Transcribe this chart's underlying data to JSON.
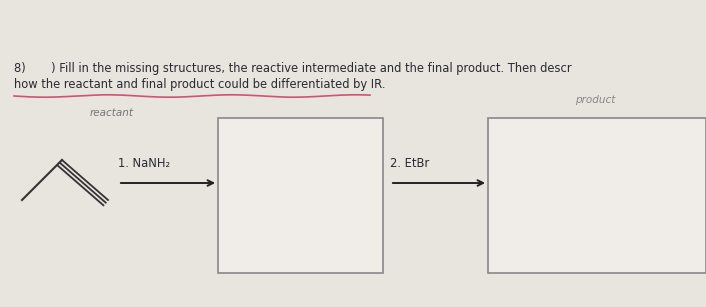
{
  "background_color": "#e8e4de",
  "text_color": "#2a2a35",
  "reactant_label_color": "#777777",
  "product_label_color": "#888888",
  "underline_color": "#cc5577",
  "box_edge_color": "#888888",
  "box_face_color": "#f0ede8",
  "arrow_color": "#222222",
  "alkyne_color": "#333333",
  "title_line1": "8)       ) Fill in the missing structures, the reactive intermediate and the final product. Then descr",
  "title_line2": "how the reactant and final product could be differentiated by IR.",
  "reactant_label": "reactant",
  "product_label": "product",
  "step1_label": "1. NaNH₂",
  "step2_label": "2. EtBr"
}
